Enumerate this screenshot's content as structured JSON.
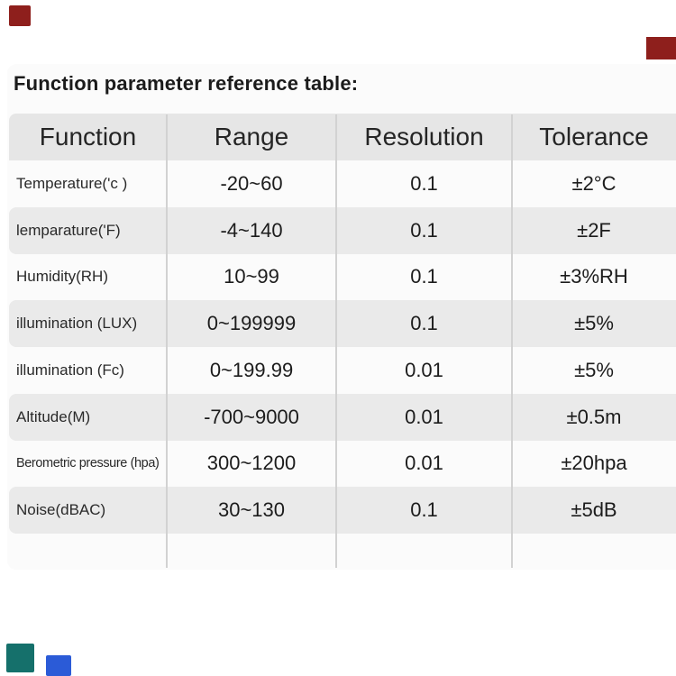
{
  "title": "Function parameter reference table:",
  "table": {
    "headers": [
      "Function",
      "Range",
      "Resolution",
      "Tolerance"
    ],
    "rows": [
      {
        "function": "Temperature('c )",
        "range": "-20~60",
        "resolution": "0.1",
        "tolerance": "±2°C"
      },
      {
        "function": "lemparature('F)",
        "range": "-4~140",
        "resolution": "0.1",
        "tolerance": "±2F"
      },
      {
        "function": "Humidity(RH)",
        "range": "10~99",
        "resolution": "0.1",
        "tolerance": "±3%RH"
      },
      {
        "function": "illumination (LUX)",
        "range": "0~199999",
        "resolution": "0.1",
        "tolerance": "±5%"
      },
      {
        "function": "illumination (Fc)",
        "range": "0~199.99",
        "resolution": "0.01",
        "tolerance": "±5%"
      },
      {
        "function": "Altitude(M)",
        "range": "-700~9000",
        "resolution": "0.01",
        "tolerance": "±0.5m"
      },
      {
        "function": "Berometric pressure (hpa)",
        "range": "300~1200",
        "resolution": "0.01",
        "tolerance": "±20hpa"
      },
      {
        "function": "Noise(dBAC)",
        "range": "30~130",
        "resolution": "0.1",
        "tolerance": "±5dB"
      }
    ]
  },
  "colors": {
    "header_bg": "#e6e6e6",
    "stripe_bg": "#eaeaea",
    "separator": "#d2d2d2",
    "mark_red": "#8e1f1c",
    "mark_teal": "#15706b",
    "mark_blue": "#2b5bd7"
  }
}
